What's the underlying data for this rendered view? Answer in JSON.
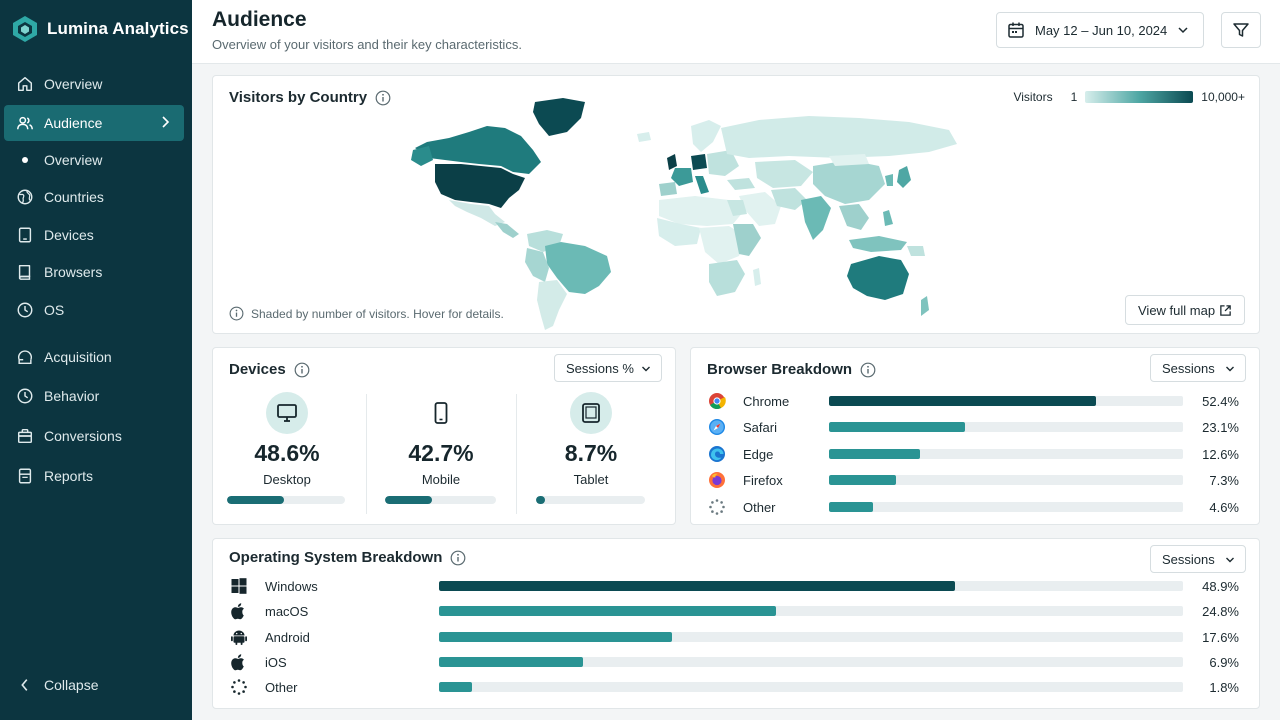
{
  "app": {
    "name": "Lumina Analytics",
    "accent": "#1a6b72",
    "sidebar_bg": "#0c3540"
  },
  "sidebar": {
    "items": [
      {
        "label": "Overview",
        "icon": "home-icon"
      },
      {
        "label": "Audience",
        "icon": "users-icon",
        "active": true
      },
      {
        "label": "Overview",
        "icon": "dot-icon",
        "sub": true
      },
      {
        "label": "Countries",
        "icon": "globe-icon"
      },
      {
        "label": "Devices",
        "icon": "tablet-icon"
      },
      {
        "label": "Browsers",
        "icon": "book-icon"
      },
      {
        "label": "OS",
        "icon": "clock-icon"
      },
      {
        "label": "Acquisition",
        "icon": "acquisition-icon"
      },
      {
        "label": "Behavior",
        "icon": "clock-icon"
      },
      {
        "label": "Conversions",
        "icon": "stack-icon"
      },
      {
        "label": "Reports",
        "icon": "report-icon"
      }
    ],
    "collapse_label": "Collapse"
  },
  "header": {
    "title": "Audience",
    "subtitle": "Overview of your visitors and their key characteristics.",
    "date_range": "May 12 – Jun 10, 2024"
  },
  "map_card": {
    "title": "Visitors by Country",
    "legend_label": "Visitors",
    "legend_min": "1",
    "legend_max": "10,000+",
    "note": "Shaded by number of visitors. Hover for details.",
    "view_button": "View full map"
  },
  "devices_card": {
    "title": "Devices",
    "metric_select": "Sessions %",
    "items": [
      {
        "value": "48.6%",
        "label": "Desktop",
        "share": 48.6,
        "icon": "monitor-icon"
      },
      {
        "value": "42.7%",
        "label": "Mobile",
        "share": 42.7,
        "icon": "phone-icon"
      },
      {
        "value": "8.7%",
        "label": "Tablet",
        "share": 8.7,
        "icon": "tablet-icon"
      }
    ]
  },
  "browser_card": {
    "title": "Browser Breakdown",
    "metric_select": "Sessions",
    "rows": [
      {
        "name": "Chrome",
        "pct": "52.4%",
        "share": 52.4,
        "icon": "chrome-icon",
        "color": "#0b4a52"
      },
      {
        "name": "Safari",
        "pct": "23.1%",
        "share": 23.1,
        "icon": "safari-icon",
        "color": "#2a9494"
      },
      {
        "name": "Edge",
        "pct": "12.6%",
        "share": 12.6,
        "icon": "edge-icon",
        "color": "#2a9494"
      },
      {
        "name": "Firefox",
        "pct": "7.3%",
        "share": 7.3,
        "icon": "firefox-icon",
        "color": "#2a9494"
      },
      {
        "name": "Other",
        "pct": "4.6%",
        "share": 4.6,
        "icon": "other-icon",
        "color": "#2a9494"
      }
    ]
  },
  "os_card": {
    "title": "Operating System Breakdown",
    "metric_select": "Sessions",
    "rows": [
      {
        "name": "Windows",
        "pct": "48.9%",
        "share": 48.9,
        "icon": "windows-icon",
        "color": "#0b4a52"
      },
      {
        "name": "macOS",
        "pct": "24.8%",
        "share": 24.8,
        "icon": "apple-icon",
        "color": "#2a9494"
      },
      {
        "name": "Android",
        "pct": "17.6%",
        "share": 17.6,
        "icon": "android-icon",
        "color": "#2a9494"
      },
      {
        "name": "iOS",
        "pct": "6.9%",
        "share": 6.9,
        "icon": "apple-icon",
        "color": "#2a9494"
      },
      {
        "name": "Other",
        "pct": "1.8%",
        "share": 1.8,
        "icon": "other-icon",
        "color": "#2a9494"
      }
    ]
  }
}
